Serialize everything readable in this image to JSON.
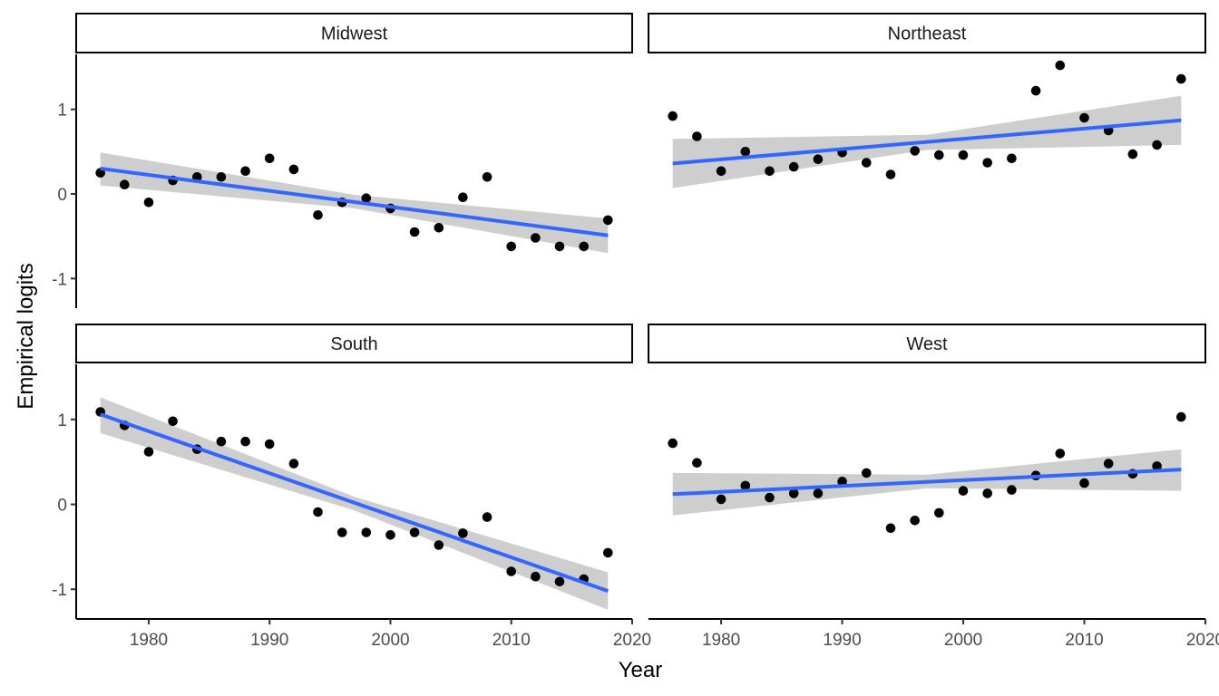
{
  "chart_data": {
    "type": "scatter",
    "xlabel": "Year",
    "ylabel": "Empirical logits",
    "xticks": [
      1980,
      1990,
      2000,
      2010,
      2020
    ],
    "yticks": [
      -1,
      0,
      1
    ],
    "xlim": [
      1974,
      2020
    ],
    "ylim": [
      -1.35,
      1.65
    ],
    "smooth": "linear fit with confidence band",
    "colors": {
      "points": "#000000",
      "fit_line": "#3366FF",
      "band": "#BEBEBE",
      "strip_fill": "#FFFFFF",
      "strip_border": "#000000"
    },
    "panels": [
      {
        "name": "Midwest",
        "x": [
          1976,
          1978,
          1980,
          1982,
          1984,
          1986,
          1988,
          1990,
          1992,
          1994,
          1996,
          1998,
          2000,
          2002,
          2004,
          2006,
          2008,
          2010,
          2012,
          2014,
          2016,
          2018
        ],
        "y": [
          0.25,
          0.11,
          -0.1,
          0.16,
          0.2,
          0.2,
          0.27,
          0.42,
          0.29,
          -0.25,
          -0.1,
          -0.05,
          -0.17,
          -0.45,
          -0.4,
          -0.04,
          0.2,
          -0.62,
          -0.52,
          -0.62,
          -0.62,
          -0.31
        ],
        "fit": {
          "x": [
            1976,
            2018
          ],
          "y": [
            0.3,
            -0.49
          ]
        },
        "band": {
          "x": [
            1976,
            1997,
            2018
          ],
          "upper": [
            0.49,
            -0.01,
            -0.29
          ],
          "lower": [
            0.1,
            -0.17,
            -0.7
          ]
        }
      },
      {
        "name": "Northeast",
        "x": [
          1976,
          1978,
          1980,
          1982,
          1984,
          1986,
          1988,
          1990,
          1992,
          1994,
          1996,
          1998,
          2000,
          2002,
          2004,
          2006,
          2008,
          2010,
          2012,
          2014,
          2016,
          2018
        ],
        "y": [
          0.92,
          0.68,
          0.27,
          0.5,
          0.27,
          0.32,
          0.41,
          0.49,
          0.37,
          0.23,
          0.51,
          0.46,
          0.46,
          0.37,
          0.42,
          1.22,
          1.52,
          0.9,
          0.75,
          0.47,
          0.58,
          1.36
        ],
        "fit": {
          "x": [
            1976,
            2018
          ],
          "y": [
            0.36,
            0.87
          ]
        },
        "band": {
          "x": [
            1976,
            1997,
            2018
          ],
          "upper": [
            0.65,
            0.7,
            1.16
          ],
          "lower": [
            0.07,
            0.52,
            0.58
          ]
        }
      },
      {
        "name": "South",
        "x": [
          1976,
          1978,
          1980,
          1982,
          1984,
          1986,
          1988,
          1990,
          1992,
          1994,
          1996,
          1998,
          2000,
          2002,
          2004,
          2006,
          2008,
          2010,
          2012,
          2014,
          2016,
          2018
        ],
        "y": [
          1.09,
          0.93,
          0.62,
          0.98,
          0.65,
          0.74,
          0.74,
          0.71,
          0.48,
          -0.09,
          -0.33,
          -0.33,
          -0.36,
          -0.33,
          -0.48,
          -0.34,
          -0.15,
          -0.79,
          -0.85,
          -0.91,
          -0.88,
          -0.57
        ],
        "fit": {
          "x": [
            1976,
            2018
          ],
          "y": [
            1.06,
            -1.02
          ]
        },
        "band": {
          "x": [
            1976,
            1997,
            2018
          ],
          "upper": [
            1.26,
            0.09,
            -0.8
          ],
          "lower": [
            0.84,
            -0.07,
            -1.24
          ]
        }
      },
      {
        "name": "West",
        "x": [
          1976,
          1978,
          1980,
          1982,
          1984,
          1986,
          1988,
          1990,
          1992,
          1994,
          1996,
          1998,
          2000,
          2002,
          2004,
          2006,
          2008,
          2010,
          2012,
          2014,
          2016,
          2018
        ],
        "y": [
          0.72,
          0.49,
          0.06,
          0.22,
          0.08,
          0.13,
          0.13,
          0.27,
          0.37,
          -0.28,
          -0.19,
          -0.1,
          0.16,
          0.13,
          0.17,
          0.34,
          0.6,
          0.25,
          0.48,
          0.36,
          0.45,
          1.03
        ],
        "fit": {
          "x": [
            1976,
            2018
          ],
          "y": [
            0.12,
            0.41
          ]
        },
        "band": {
          "x": [
            1976,
            1997,
            2018
          ],
          "upper": [
            0.37,
            0.35,
            0.65
          ],
          "lower": [
            -0.13,
            0.19,
            0.16
          ]
        }
      }
    ]
  }
}
